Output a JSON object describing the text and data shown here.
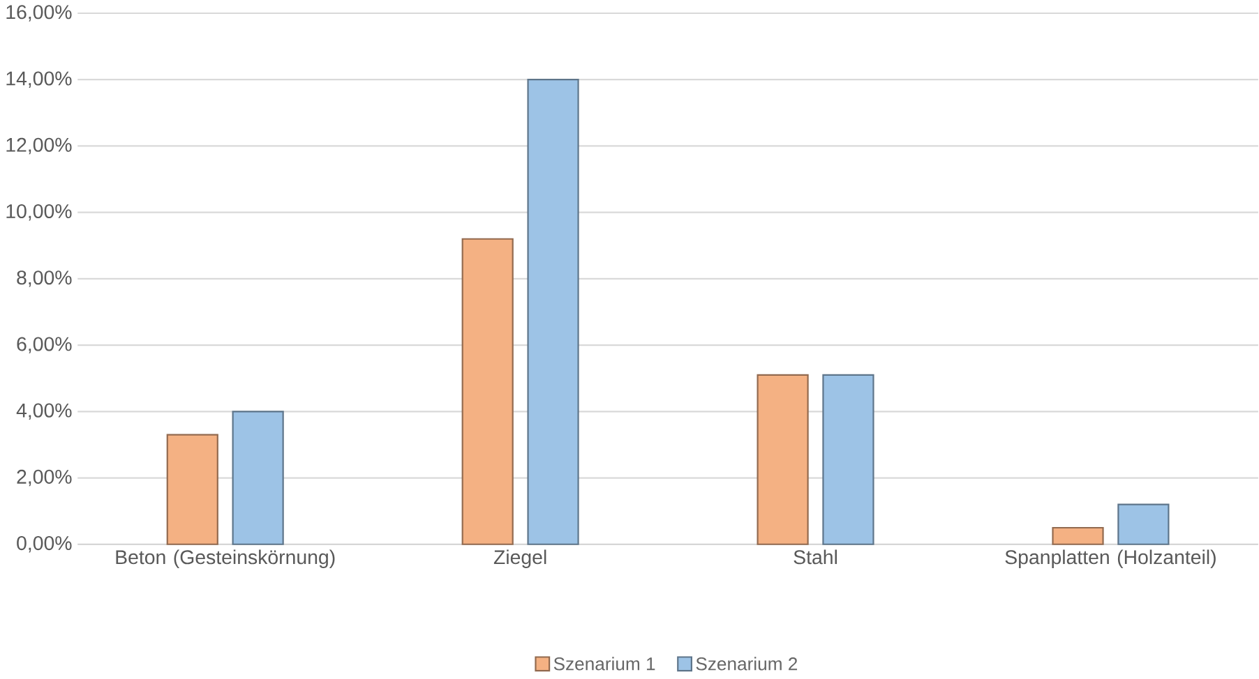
{
  "chart_data": {
    "type": "bar",
    "categories": [
      "Beton (Gesteinskörnung)",
      "Ziegel",
      "Stahl",
      "Spanplatten (Holzanteil)"
    ],
    "series": [
      {
        "name": "Szenarium 1",
        "color": "#f4b183",
        "values": [
          3.3,
          9.2,
          5.1,
          0.5
        ]
      },
      {
        "name": "Szenarium 2",
        "color": "#9dc3e6",
        "values": [
          4.0,
          14.0,
          5.1,
          1.2
        ]
      }
    ],
    "ylim": [
      0,
      16
    ],
    "yticks": [
      {
        "value": 0,
        "label": "0,00%"
      },
      {
        "value": 2,
        "label": "2,00%"
      },
      {
        "value": 4,
        "label": "4,00%"
      },
      {
        "value": 6,
        "label": "6,00%"
      },
      {
        "value": 8,
        "label": "8,00%"
      },
      {
        "value": 10,
        "label": "10,00%"
      },
      {
        "value": 12,
        "label": "12,00%"
      },
      {
        "value": 14,
        "label": "14,00%"
      },
      {
        "value": 16,
        "label": "16,00%"
      }
    ],
    "grid": "y",
    "legend": "bottom"
  }
}
